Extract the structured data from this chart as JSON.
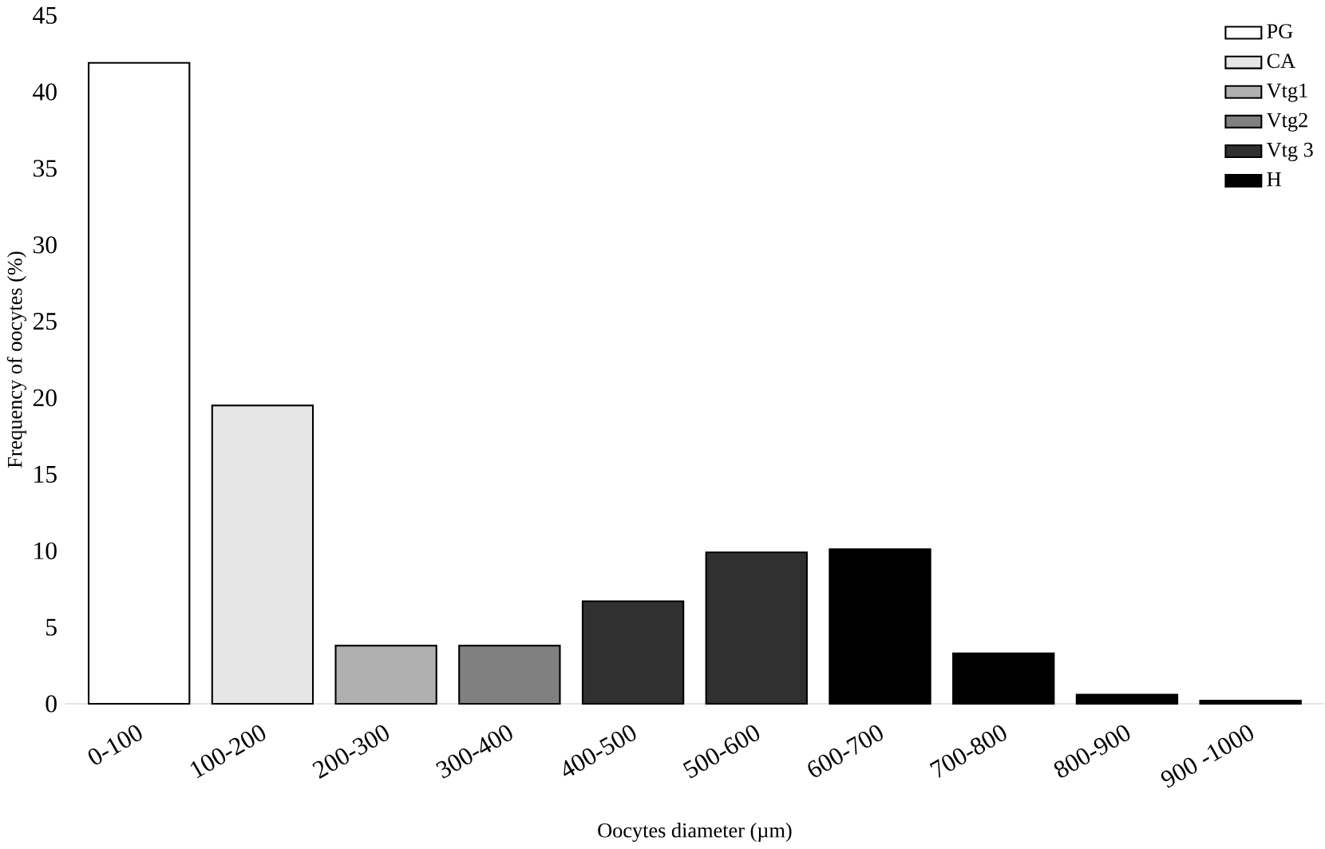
{
  "chart_data": {
    "type": "bar",
    "xlabel": "Oocytes diameter (µm)",
    "ylabel": "Frequency of oocytes (%)",
    "categories": [
      "0-100",
      "100-200",
      "200-300",
      "300-400",
      "400-500",
      "500-600",
      "600-700",
      "700-800",
      "800-900",
      "900 -1000"
    ],
    "series": [
      {
        "name": "PG",
        "color": "#ffffff",
        "values": [
          41.9,
          null,
          null,
          null,
          null,
          null,
          null,
          null,
          null,
          null
        ]
      },
      {
        "name": "CA",
        "color": "#e6e6e6",
        "values": [
          null,
          19.5,
          null,
          null,
          null,
          null,
          null,
          null,
          null,
          null
        ]
      },
      {
        "name": "Vtg1",
        "color": "#b0b0b0",
        "values": [
          null,
          null,
          3.8,
          null,
          null,
          null,
          null,
          null,
          null,
          null
        ]
      },
      {
        "name": "Vtg2",
        "color": "#808080",
        "values": [
          null,
          null,
          null,
          3.8,
          null,
          null,
          null,
          null,
          null,
          null
        ]
      },
      {
        "name": "Vtg 3",
        "color": "#303030",
        "values": [
          null,
          null,
          null,
          null,
          6.7,
          9.9,
          null,
          null,
          null,
          null
        ]
      },
      {
        "name": "H",
        "color": "#000000",
        "values": [
          null,
          null,
          null,
          null,
          null,
          null,
          10.1,
          3.3,
          0.6,
          0.2
        ]
      }
    ],
    "ylim": [
      0,
      45
    ],
    "yticks": [
      0,
      5,
      10,
      15,
      20,
      25,
      30,
      35,
      40,
      45
    ],
    "legend": "top right"
  }
}
